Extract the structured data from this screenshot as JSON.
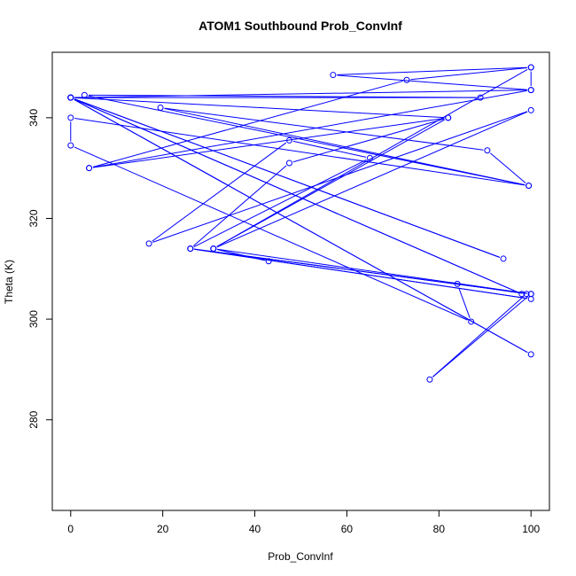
{
  "chart_data": {
    "type": "line",
    "title": "ATOM1 Southbound Prob_ConvInf",
    "xlabel": "Prob_ConvInf",
    "ylabel": "Theta (K)",
    "xlim": [
      -4,
      104
    ],
    "ylim": [
      262,
      353
    ],
    "xticks": [
      0,
      20,
      40,
      60,
      80,
      100
    ],
    "yticks": [
      280,
      300,
      320,
      340
    ],
    "grid": false,
    "line_color": "#0000ff",
    "series": [
      {
        "points": [
          [
            0,
            344
          ],
          [
            94,
            312
          ],
          [
            0,
            344
          ],
          [
            100,
            293
          ],
          [
            0,
            344
          ],
          [
            98,
            305
          ],
          [
            0,
            344
          ],
          [
            82,
            340
          ],
          [
            4,
            330
          ],
          [
            100,
            345.5
          ],
          [
            0,
            344
          ],
          [
            89,
            344
          ],
          [
            3,
            344.5
          ],
          [
            99.5,
            326.5
          ],
          [
            19.5,
            342
          ],
          [
            90.5,
            333.5
          ],
          [
            99.5,
            326.5
          ],
          [
            0,
            340
          ],
          [
            0,
            334.5
          ],
          [
            87,
            299.5
          ],
          [
            84,
            307
          ],
          [
            99,
            305
          ],
          [
            78,
            288
          ],
          [
            100,
            305
          ],
          [
            26,
            314
          ],
          [
            100,
            305
          ],
          [
            31,
            314
          ],
          [
            43,
            311.5
          ],
          [
            31,
            314
          ],
          [
            100,
            341.5
          ],
          [
            17,
            315
          ],
          [
            47.5,
            335.5
          ],
          [
            65,
            332
          ],
          [
            26,
            314
          ],
          [
            100,
            304
          ],
          [
            26,
            314
          ],
          [
            47.5,
            331
          ],
          [
            82,
            340
          ],
          [
            31,
            314
          ],
          [
            100,
            350
          ],
          [
            57,
            348.5
          ],
          [
            100,
            345.5
          ],
          [
            100,
            350
          ],
          [
            73,
            347.5
          ],
          [
            4,
            330
          ]
        ]
      }
    ]
  }
}
